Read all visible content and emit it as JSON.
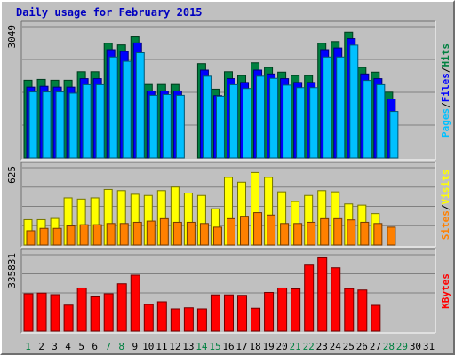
{
  "chart_data": {
    "type": "bar",
    "title": "Daily usage for February 2015",
    "days": [
      "1",
      "2",
      "3",
      "4",
      "5",
      "6",
      "7",
      "8",
      "9",
      "10",
      "11",
      "12",
      "13",
      "14",
      "15",
      "16",
      "17",
      "18",
      "19",
      "20",
      "21",
      "22",
      "23",
      "24",
      "25",
      "26",
      "27",
      "28",
      "29",
      "30",
      "31"
    ],
    "weekend_days": [
      "1",
      "7",
      "8",
      "14",
      "15",
      "21",
      "22",
      "28",
      "29"
    ],
    "panels": [
      {
        "id": "hits_files_pages",
        "max_label": "3049",
        "ymax": 3049,
        "series": [
          {
            "name": "Hits",
            "color": "#008040",
            "values": [
              1830,
              1850,
              1830,
              1830,
              2030,
              2030,
              2700,
              2660,
              2850,
              1730,
              1730,
              1730,
              0,
              2220,
              1620,
              2030,
              1940,
              2240,
              2130,
              2020,
              1940,
              1940,
              2700,
              2740,
              2960,
              2130,
              2020,
              1550,
              0,
              0,
              0
            ]
          },
          {
            "name": "Files",
            "color": "#0000ff",
            "values": [
              1730,
              1750,
              1730,
              1730,
              1930,
              1930,
              2610,
              2570,
              2770,
              1640,
              1640,
              1640,
              0,
              2130,
              1530,
              1930,
              1840,
              2130,
              2040,
              1930,
              1840,
              1840,
              2610,
              2650,
              2870,
              2040,
              1930,
              1450,
              0,
              0,
              0
            ]
          },
          {
            "name": "Pages",
            "color": "#00c0ff",
            "values": [
              1680,
              1680,
              1680,
              1650,
              1850,
              1850,
              2500,
              2400,
              2600,
              1600,
              1620,
              1600,
              0,
              2050,
              1580,
              1850,
              1760,
              2050,
              2000,
              1840,
              1780,
              1780,
              2500,
              2500,
              2780,
              1950,
              1850,
              1220,
              0,
              0,
              0
            ]
          }
        ],
        "legend": [
          "Pages",
          "Files",
          "Hits"
        ]
      },
      {
        "id": "visits_sites",
        "max_label": "625",
        "ymax": 625,
        "series": [
          {
            "name": "Visits",
            "color": "#ffff00",
            "values": [
              210,
              210,
              220,
              390,
              380,
              390,
              460,
              450,
              420,
              410,
              450,
              480,
              430,
              410,
              300,
              560,
              520,
              600,
              560,
              440,
              360,
              410,
              450,
              440,
              340,
              330,
              260,
              0,
              0,
              0,
              0
            ]
          },
          {
            "name": "Sites",
            "color": "#ff8000",
            "values": [
              140,
              160,
              160,
              180,
              190,
              190,
              200,
              200,
              210,
              220,
              240,
              210,
              210,
              200,
              170,
              240,
              260,
              290,
              270,
              200,
              200,
              210,
              240,
              240,
              230,
              210,
              200,
              170,
              0,
              0,
              0
            ]
          }
        ],
        "legend": [
          "Sites",
          "Visits"
        ]
      },
      {
        "id": "kbytes",
        "max_label": "335831",
        "ymax": 335831,
        "series": [
          {
            "name": "KBytes",
            "color": "#ff0000",
            "values": [
              168000,
              171000,
              164000,
              117000,
              194000,
              154000,
              168000,
              213000,
              252000,
              120000,
              132000,
              100000,
              105000,
              100000,
              163000,
              163000,
              161000,
              103000,
              174000,
              194000,
              190000,
              297000,
              330000,
              285000,
              191000,
              185000,
              116000,
              0,
              0,
              0,
              0
            ]
          }
        ],
        "legend": [
          "KBytes"
        ]
      }
    ]
  }
}
